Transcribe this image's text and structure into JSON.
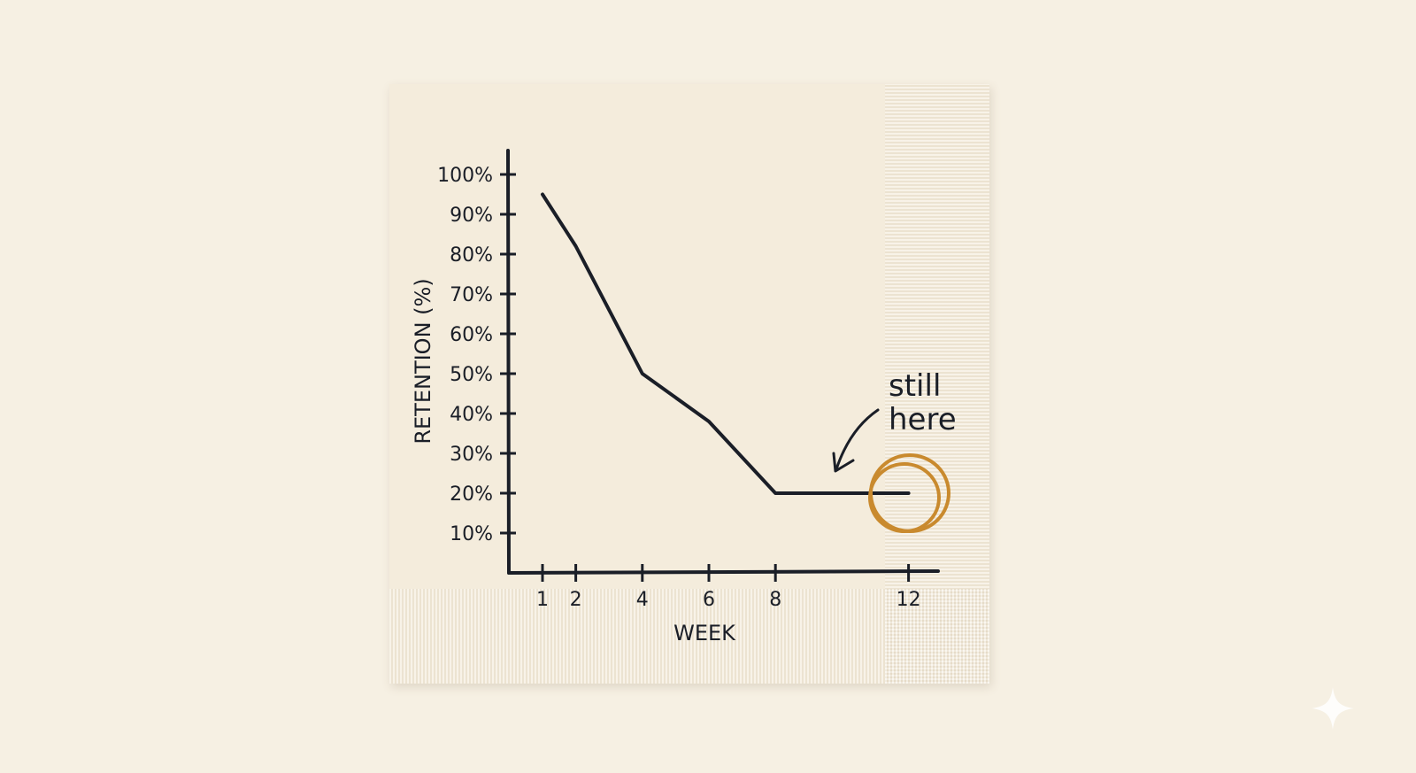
{
  "chart_data": {
    "type": "line",
    "title": "",
    "xlabel": "WEEK",
    "ylabel": "RETENTION (%)",
    "x_ticks": [
      1,
      2,
      4,
      6,
      8,
      12
    ],
    "y_ticks": [
      "10%",
      "20%",
      "30%",
      "40%",
      "50%",
      "60%",
      "70%",
      "80%",
      "90%",
      "100%"
    ],
    "y_tick_values": [
      10,
      20,
      30,
      40,
      50,
      60,
      70,
      80,
      90,
      100
    ],
    "ylim": [
      0,
      100
    ],
    "xlim": [
      0,
      12.5
    ],
    "grid": false,
    "series": [
      {
        "name": "Retention",
        "x": [
          1,
          2,
          4,
          6,
          8,
          12
        ],
        "values": [
          95,
          82,
          50,
          38,
          20,
          20
        ]
      }
    ],
    "annotation": {
      "line1": "still",
      "line2": "here",
      "target_week": 12,
      "target_value": 20
    },
    "colors": {
      "ink": "#1a1e27",
      "highlight": "#c98a2e"
    }
  }
}
